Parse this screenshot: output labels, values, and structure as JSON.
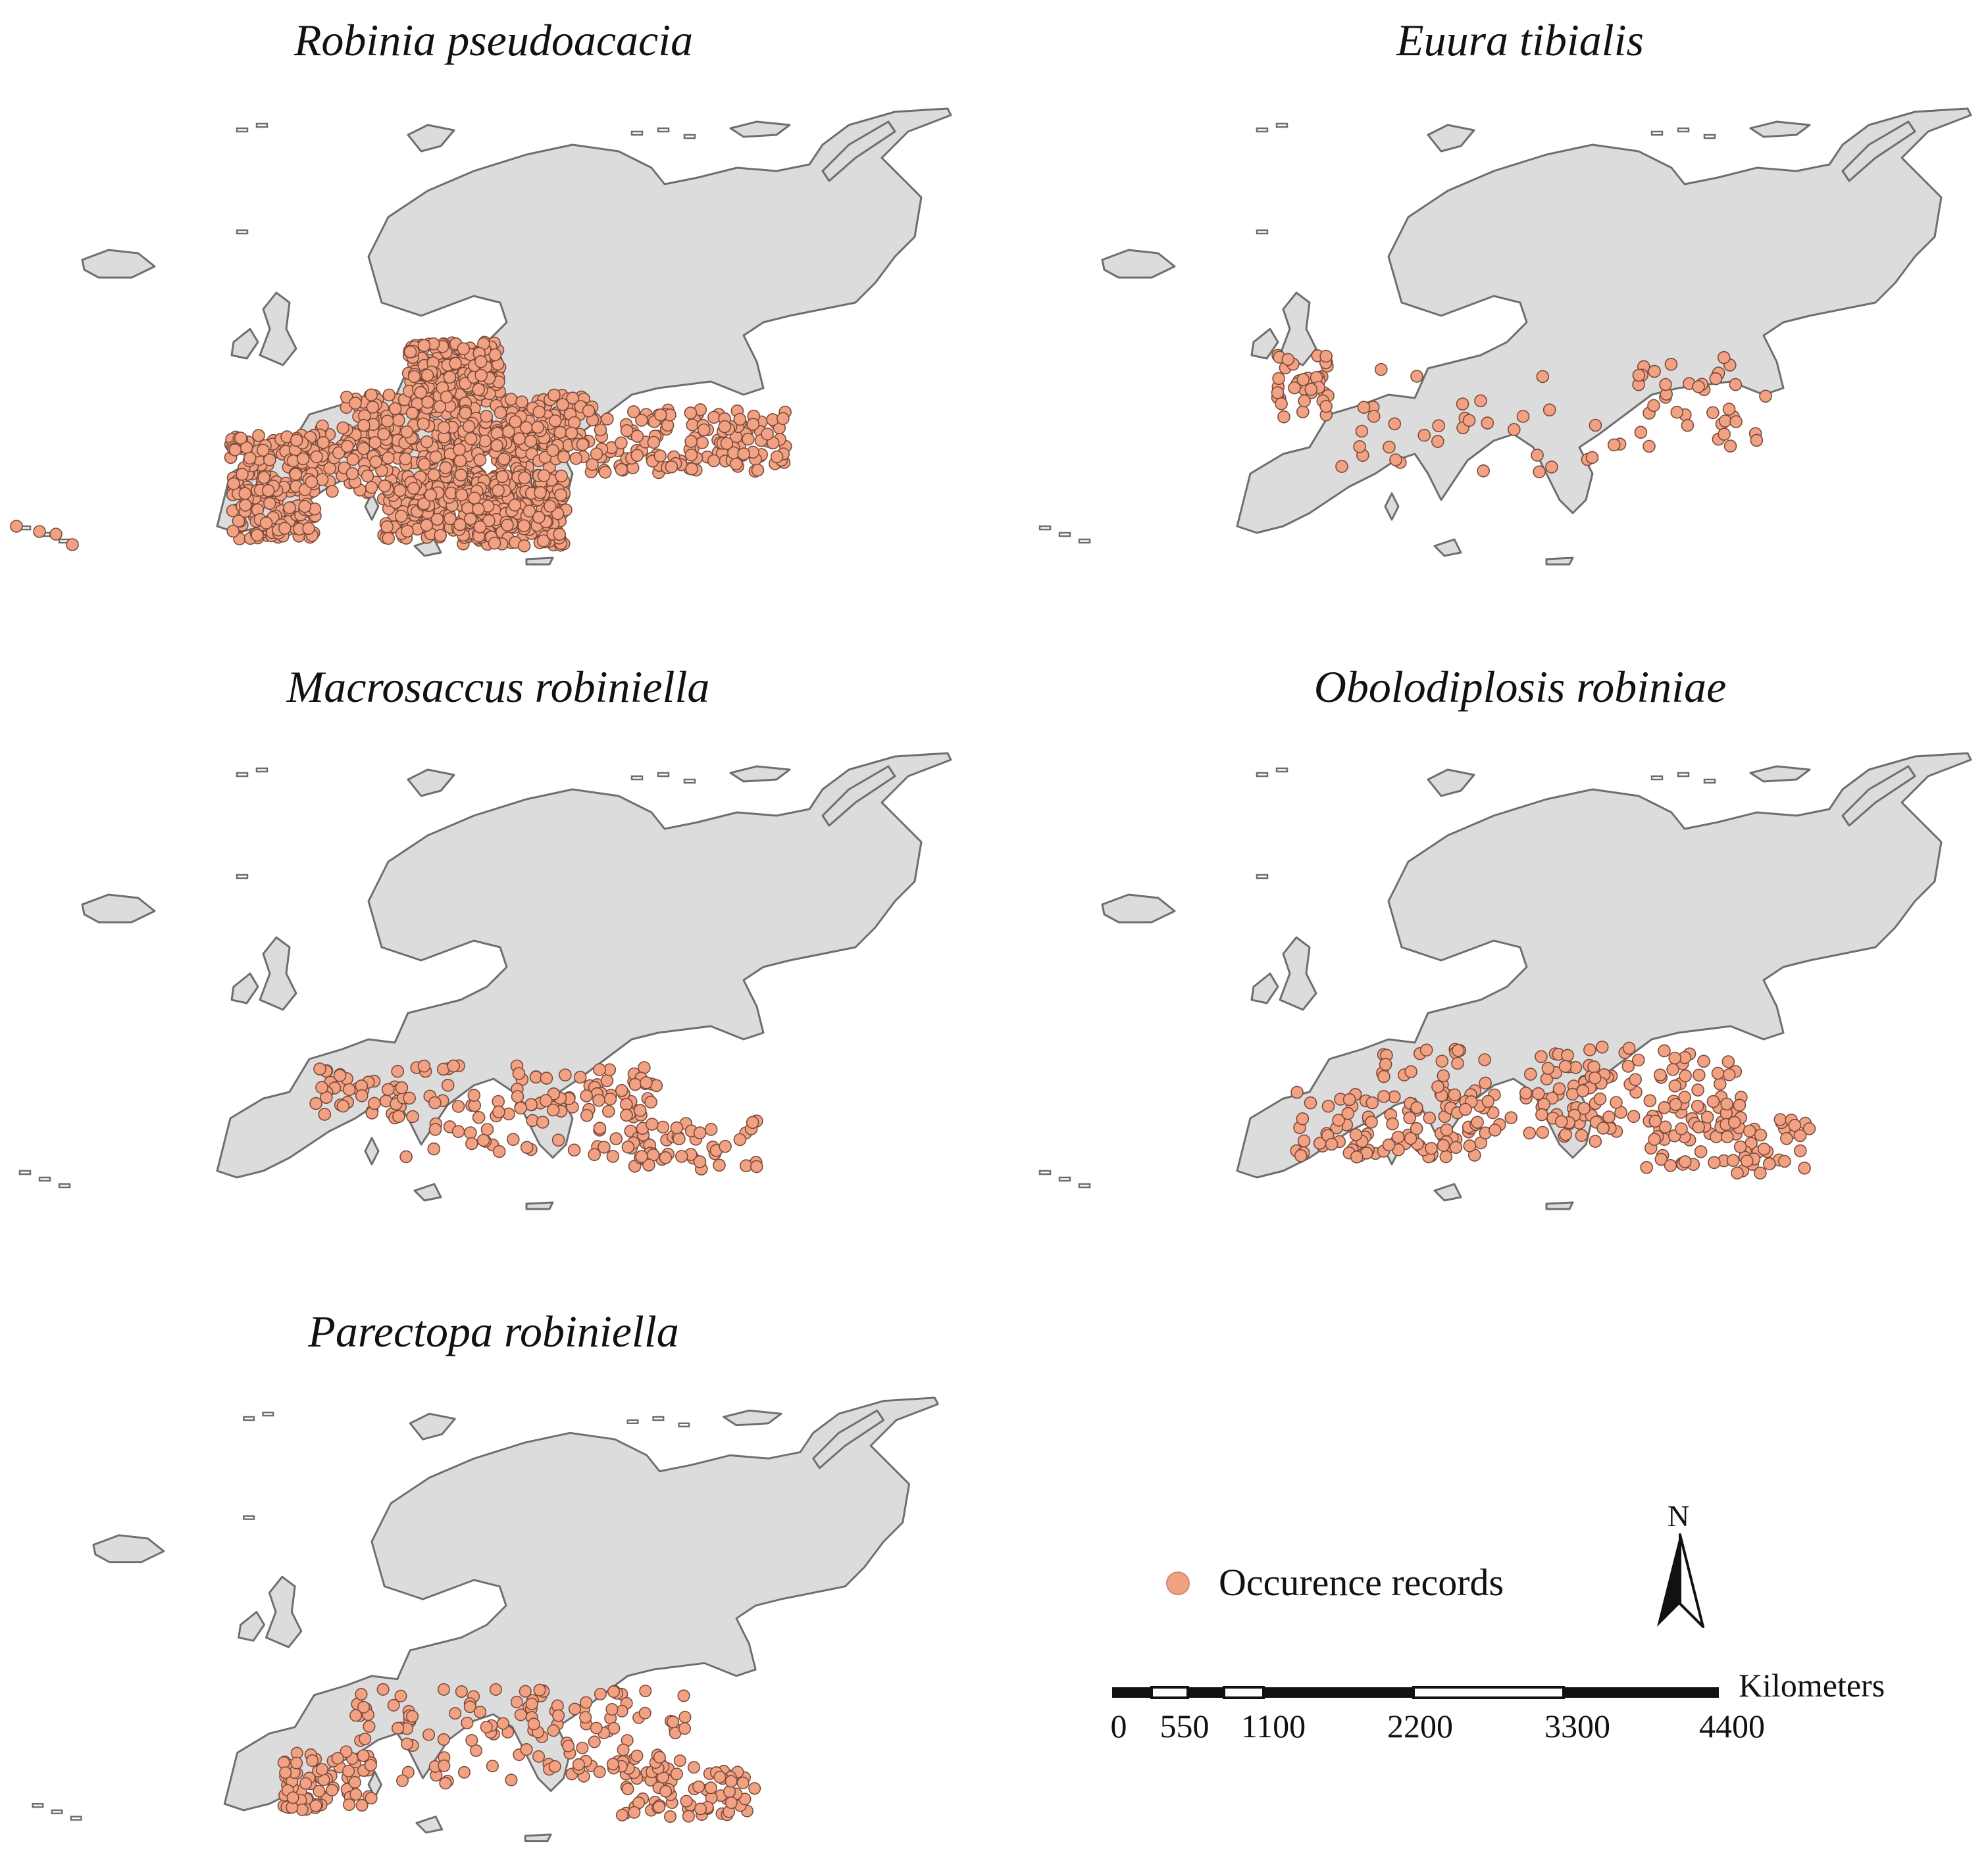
{
  "panels": [
    {
      "title": "Robinia pseudoacacia",
      "density": "very high",
      "record_count_approx": 1500
    },
    {
      "title": "Euura tibialis",
      "density": "low",
      "record_count_approx": 110
    },
    {
      "title": "Macrosaccus robiniella",
      "density": "medium",
      "record_count_approx": 200
    },
    {
      "title": "Obolodiplosis robiniae",
      "density": "medium-high",
      "record_count_approx": 320
    },
    {
      "title": "Parectopa robiniella",
      "density": "medium",
      "record_count_approx": 290
    }
  ],
  "legend": {
    "label": "Occurence records",
    "marker_color": "#f2a283"
  },
  "north_arrow": {
    "label": "N"
  },
  "scale_bar": {
    "unit": "Kilometers",
    "ticks": [
      "0",
      "550",
      "1100",
      "2200",
      "3300",
      "4400"
    ]
  },
  "colors": {
    "land": "#dcdcdc",
    "coastline": "#6e6e6e",
    "points": "#f2a283",
    "point_outline": "#7a4a3a"
  }
}
